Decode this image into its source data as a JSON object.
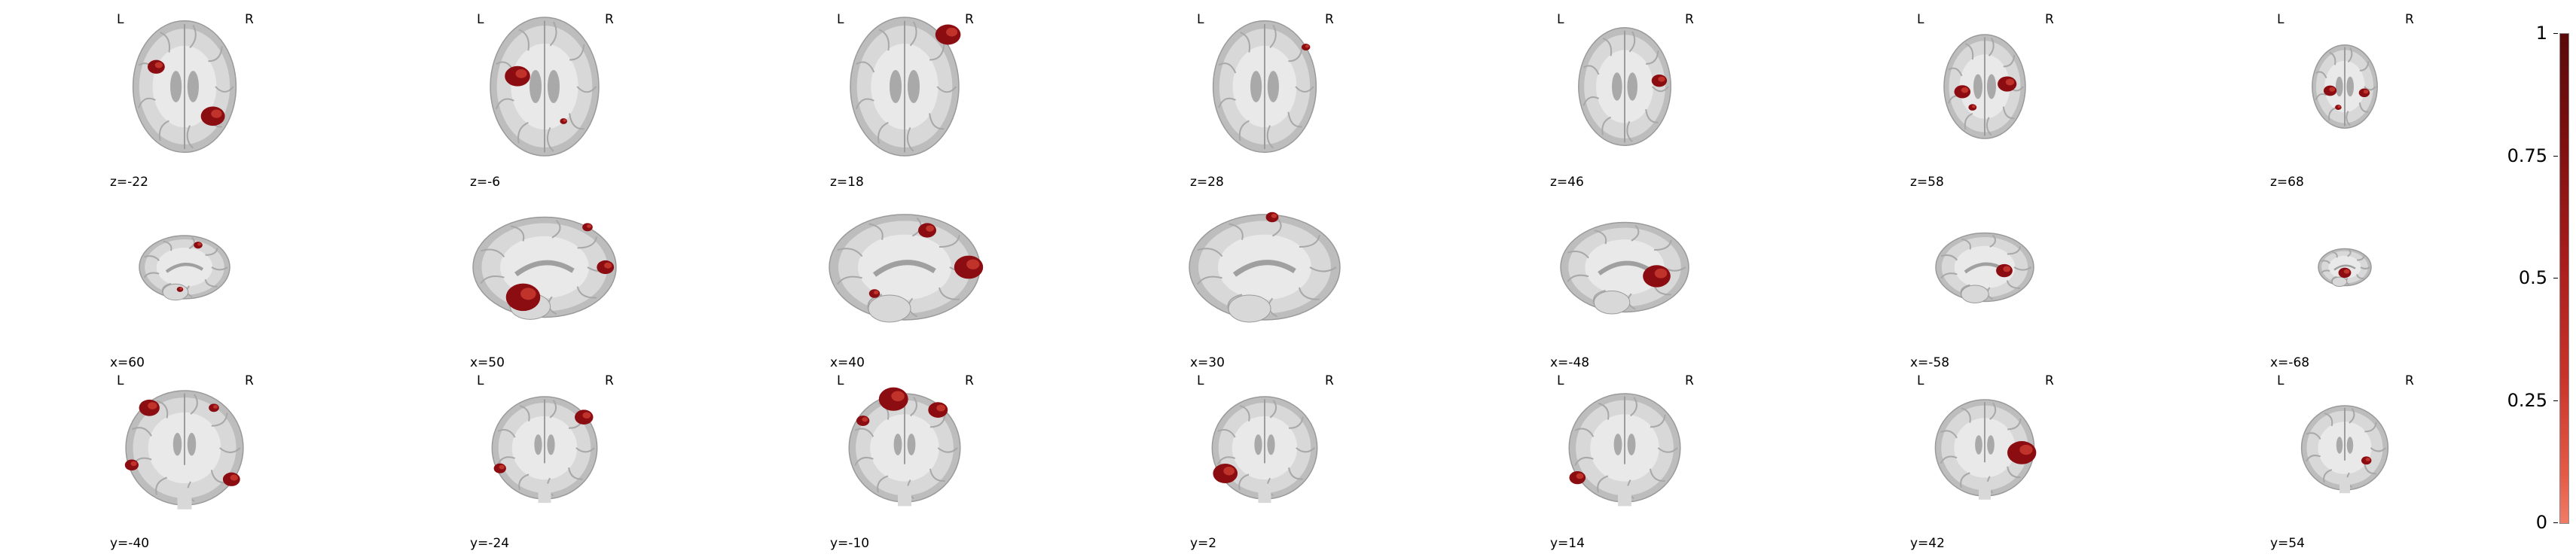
{
  "rows": [
    {
      "orientation": "axial",
      "side_labels": true,
      "slices": [
        {
          "label": "z=-22",
          "blobs": [
            [
              -0.55,
              -0.3,
              0.1
            ],
            [
              0.55,
              0.45,
              0.14
            ]
          ]
        },
        {
          "label": "z=-6",
          "blobs": [
            [
              -0.5,
              -0.15,
              0.14
            ],
            [
              0.35,
              0.5,
              0.04
            ]
          ]
        },
        {
          "label": "z=18",
          "blobs": [
            [
              0.8,
              -0.75,
              0.14
            ]
          ]
        },
        {
          "label": "z=28",
          "blobs": [
            [
              0.8,
              -0.6,
              0.05
            ]
          ]
        },
        {
          "label": "z=46",
          "blobs": [
            [
              0.75,
              -0.1,
              0.1
            ]
          ]
        },
        {
          "label": "z=58",
          "blobs": [
            [
              -0.55,
              0.1,
              0.12
            ],
            [
              0.55,
              -0.05,
              0.14
            ],
            [
              -0.3,
              0.4,
              0.06
            ]
          ]
        },
        {
          "label": "z=68",
          "blobs": [
            [
              -0.45,
              0.1,
              0.12
            ],
            [
              0.6,
              0.15,
              0.1
            ],
            [
              -0.2,
              0.5,
              0.06
            ]
          ]
        }
      ]
    },
    {
      "orientation": "sagittal",
      "side_labels": false,
      "slices": [
        {
          "label": "x=60",
          "blobs": [
            [
              0.3,
              -0.7,
              0.08
            ],
            [
              -0.1,
              0.7,
              0.06
            ]
          ]
        },
        {
          "label": "x=50",
          "blobs": [
            [
              -0.3,
              0.6,
              0.2
            ],
            [
              0.85,
              0.0,
              0.1
            ],
            [
              0.6,
              -0.8,
              0.06
            ]
          ]
        },
        {
          "label": "x=40",
          "blobs": [
            [
              0.85,
              0.0,
              0.16
            ],
            [
              0.3,
              -0.7,
              0.1
            ],
            [
              -0.4,
              0.5,
              0.06
            ]
          ]
        },
        {
          "label": "x=30",
          "blobs": [
            [
              0.1,
              -0.95,
              0.07
            ]
          ]
        },
        {
          "label": "x=-48",
          "blobs": [
            [
              0.5,
              0.2,
              0.18
            ]
          ]
        },
        {
          "label": "x=-58",
          "blobs": [
            [
              0.4,
              0.1,
              0.14
            ]
          ]
        },
        {
          "label": "x=-68",
          "blobs": [
            [
              0.0,
              0.3,
              0.2
            ]
          ]
        }
      ]
    },
    {
      "orientation": "coronal",
      "side_labels": true,
      "slices": [
        {
          "label": "y=-40",
          "blobs": [
            [
              -0.6,
              -0.7,
              0.12
            ],
            [
              0.5,
              -0.7,
              0.06
            ],
            [
              -0.9,
              0.3,
              0.08
            ],
            [
              0.8,
              0.55,
              0.1
            ]
          ]
        },
        {
          "label": "y=-24",
          "blobs": [
            [
              0.75,
              -0.6,
              0.12
            ],
            [
              -0.85,
              0.4,
              0.08
            ]
          ]
        },
        {
          "label": "y=-10",
          "blobs": [
            [
              -0.2,
              -0.9,
              0.18
            ],
            [
              0.6,
              -0.7,
              0.12
            ],
            [
              -0.75,
              -0.5,
              0.08
            ]
          ]
        },
        {
          "label": "y=2",
          "blobs": [
            [
              -0.75,
              0.5,
              0.16
            ]
          ]
        },
        {
          "label": "y=14",
          "blobs": [
            [
              -0.85,
              0.55,
              0.1
            ]
          ]
        },
        {
          "label": "y=42",
          "blobs": [
            [
              0.75,
              0.1,
              0.2
            ]
          ]
        },
        {
          "label": "y=54",
          "blobs": [
            [
              0.5,
              0.3,
              0.08
            ]
          ]
        }
      ]
    }
  ],
  "side_labels": {
    "left": "L",
    "right": "R"
  },
  "colorbar": {
    "ticks": [
      "1",
      "0.75",
      "0.5",
      "0.25",
      "0"
    ],
    "range": [
      0,
      1
    ]
  },
  "colors": {
    "overlay": "#8b0d12",
    "overlay_light": "#c0332a",
    "brain_outer": "#bdbdbd",
    "brain_inner": "#d8d8d8",
    "white_matter": "#e9e9e9"
  }
}
